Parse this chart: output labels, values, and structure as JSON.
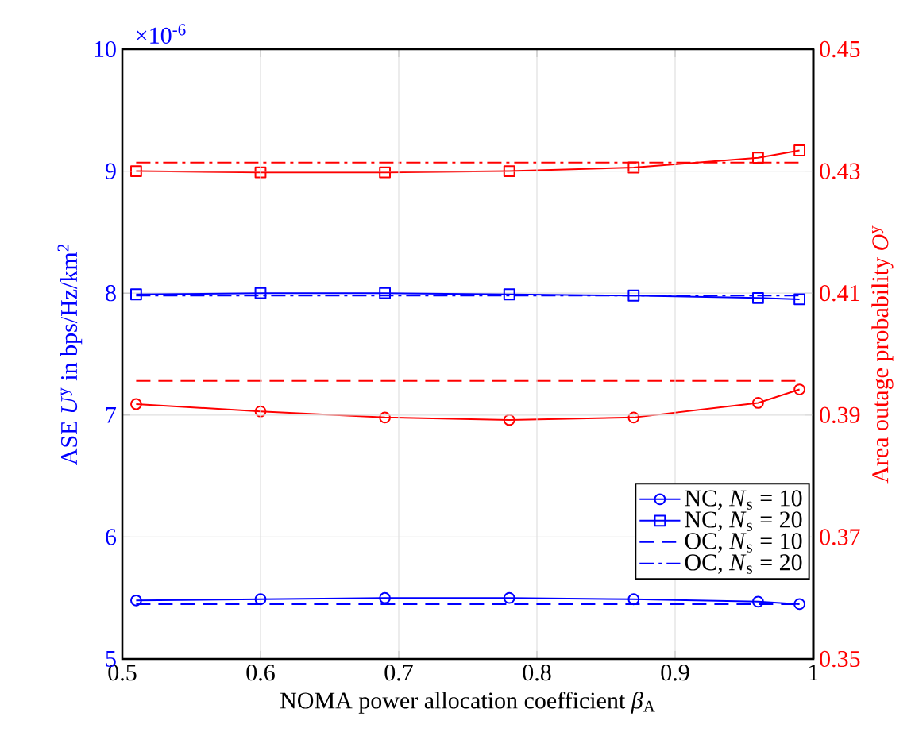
{
  "chart_data": {
    "type": "line",
    "xlabel": "NOMA power allocation coefficient *β*$_{A}$",
    "ylabel": "ASE *U*$^{y}$ in bps/Hz/km$^{2}$",
    "y2label": "Area outage probability *O*$^{y}$",
    "annotations": [
      "×10$^{-6}$"
    ],
    "xlim": [
      0.5,
      1
    ],
    "xticks": [
      0.5,
      0.6,
      0.7,
      0.8,
      0.9,
      1
    ],
    "ylim": [
      5,
      10
    ],
    "yticks": [
      5,
      6,
      7,
      8,
      9,
      10
    ],
    "y2lim": [
      0.35,
      0.45
    ],
    "y2ticks": [
      0.35,
      0.37,
      0.39,
      0.41,
      0.43,
      0.45
    ],
    "grid": true,
    "legend": "bottom right",
    "series": [
      {
        "name": "NC, *N*$_{s}$ = 10",
        "color": "#0000ff",
        "marker": "circle",
        "line_style": "solid",
        "x": [
          0.51,
          0.6,
          0.69,
          0.78,
          0.87,
          0.96,
          0.99
        ],
        "values": [
          5.48,
          5.49,
          5.5,
          5.5,
          5.49,
          5.47,
          5.45
        ]
      },
      {
        "name": "NC, *N*$_{s}$ = 20",
        "color": "#0000ff",
        "marker": "square",
        "line_style": "solid",
        "x": [
          0.51,
          0.6,
          0.69,
          0.78,
          0.87,
          0.96,
          0.99
        ],
        "values": [
          7.99,
          8.0,
          8.0,
          7.99,
          7.98,
          7.96,
          7.95
        ]
      },
      {
        "name": "OC, *N*$_{s}$ = 10",
        "color": "#0000ff",
        "marker": "none",
        "line_style": "dashed",
        "x": [
          0.51,
          0.99
        ],
        "values": [
          5.45,
          5.45
        ]
      },
      {
        "name": "OC, *N*$_{s}$ = 20",
        "color": "#0000ff",
        "marker": "none",
        "line_style": "dashdot",
        "x": [
          0.51,
          0.99
        ],
        "values": [
          7.98,
          7.98
        ]
      },
      {
        "color": "#ff0000",
        "axis": "y2",
        "marker": "circle",
        "line_style": "solid",
        "x": [
          0.51,
          0.6,
          0.69,
          0.78,
          0.87,
          0.96,
          0.99
        ],
        "values": [
          0.3918,
          0.3906,
          0.3896,
          0.3892,
          0.3896,
          0.392,
          0.3942
        ]
      },
      {
        "color": "#ff0000",
        "axis": "y2",
        "marker": "square",
        "line_style": "solid",
        "x": [
          0.51,
          0.6,
          0.69,
          0.78,
          0.87,
          0.96,
          0.99
        ],
        "values": [
          0.43,
          0.4298,
          0.4298,
          0.43,
          0.4306,
          0.4322,
          0.4334
        ]
      },
      {
        "color": "#ff0000",
        "axis": "y2",
        "marker": "none",
        "line_style": "dashed",
        "x": [
          0.51,
          0.99
        ],
        "values": [
          0.3956,
          0.3956
        ]
      },
      {
        "color": "#ff0000",
        "axis": "y2",
        "marker": "none",
        "line_style": "dashdot",
        "x": [
          0.51,
          0.99
        ],
        "values": [
          0.4314,
          0.4314
        ]
      }
    ]
  }
}
